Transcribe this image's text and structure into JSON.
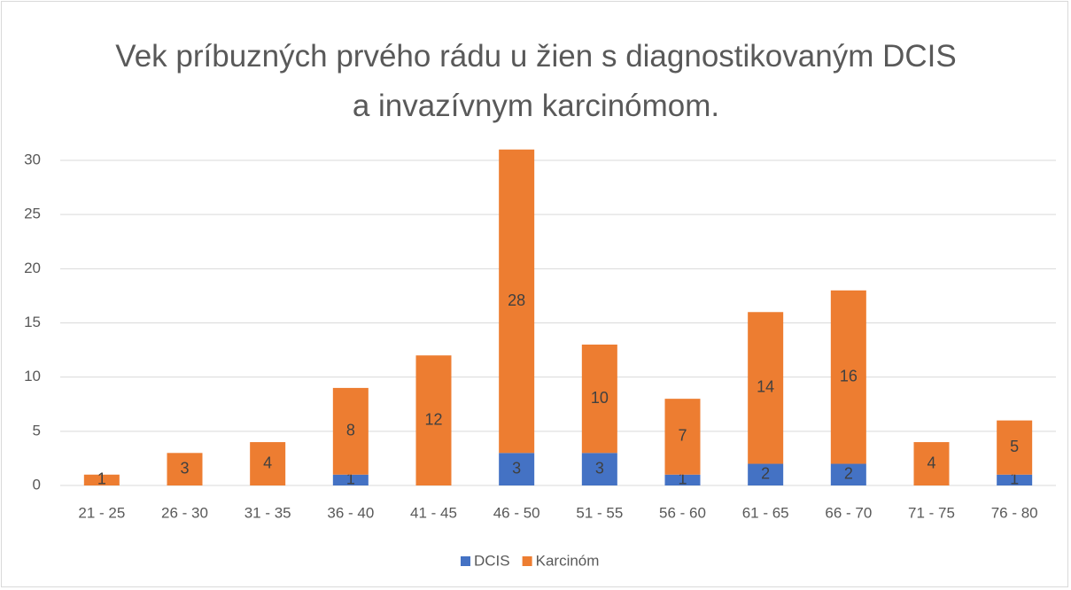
{
  "chart_data": {
    "type": "stacked_bar",
    "title": "Vek príbuzných prvého rádu u žien s diagnostikovaným DCIS a invazívnym karcinómom.",
    "categories": [
      "21 - 25",
      "26 - 30",
      "31 - 35",
      "36 - 40",
      "41 - 45",
      "46 - 50",
      "51 - 55",
      "56 - 60",
      "61 - 65",
      "66 - 70",
      "71 - 75",
      "76 - 80"
    ],
    "series": [
      {
        "name": "DCIS",
        "color": "#4472c4",
        "values": [
          0,
          0,
          0,
          1,
          0,
          3,
          3,
          1,
          2,
          2,
          0,
          1
        ]
      },
      {
        "name": "Karcinóm",
        "color": "#ed7d31",
        "values": [
          1,
          3,
          4,
          8,
          12,
          28,
          10,
          7,
          14,
          16,
          4,
          5
        ]
      }
    ],
    "ylim": [
      0,
      30
    ],
    "yticks": [
      0,
      5,
      10,
      15,
      20,
      25,
      30
    ],
    "grid": true,
    "legend": "bottom"
  }
}
